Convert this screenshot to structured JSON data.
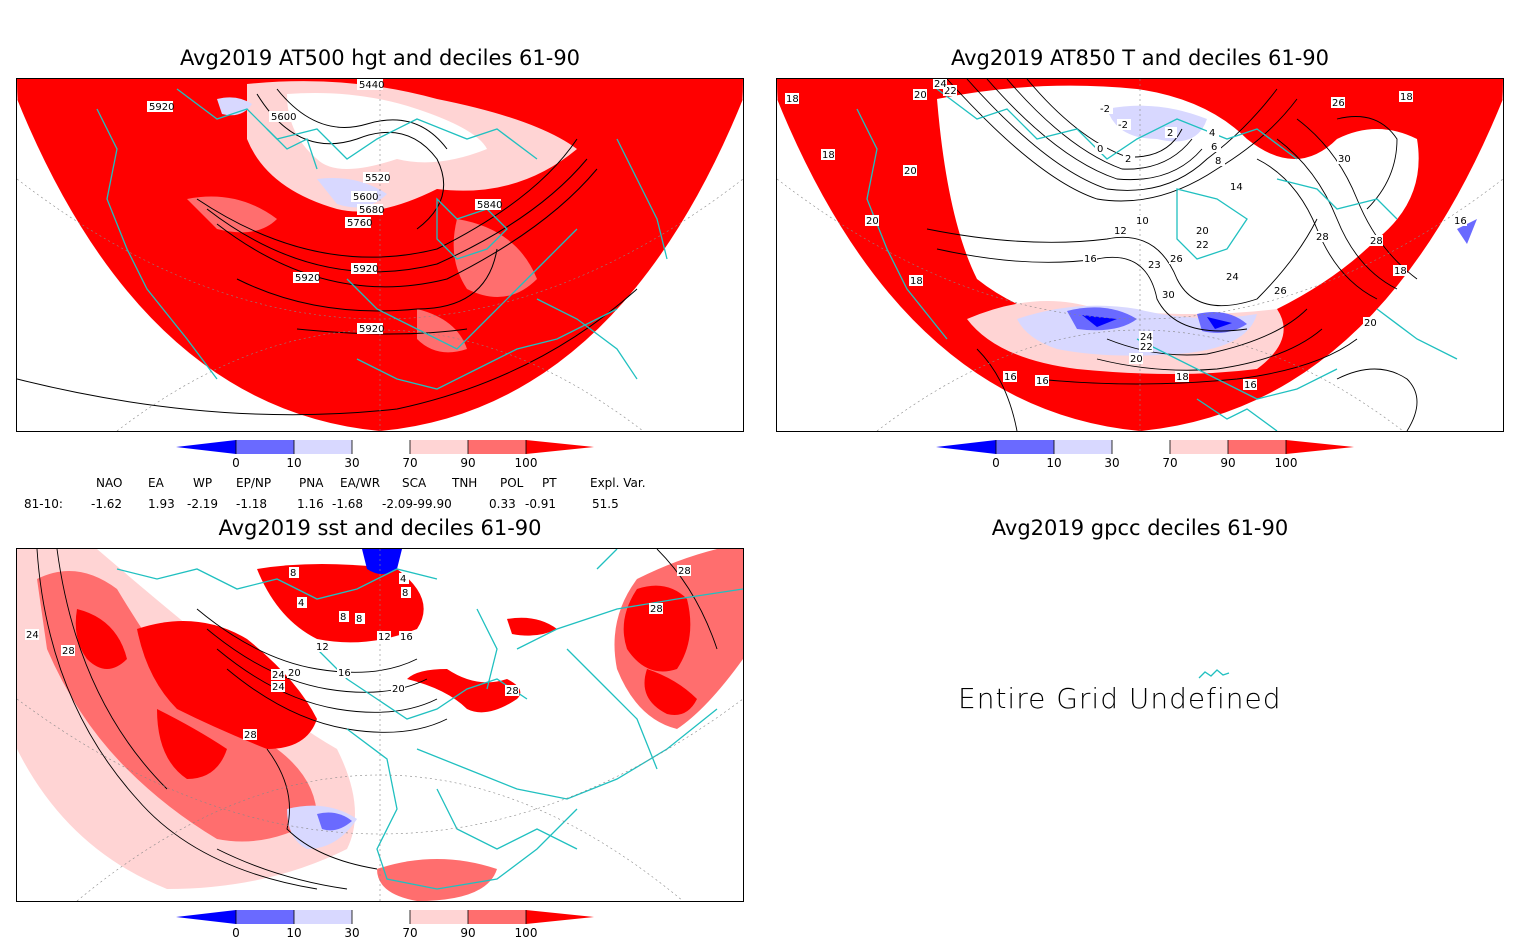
{
  "panels": [
    {
      "title": "Avg2019 AT500 hgt and deciles 61-90",
      "contour_labels": [
        "5440",
        "5920",
        "5600",
        "5520",
        "5600",
        "5680",
        "5760",
        "5840",
        "5920",
        "5920",
        "5920"
      ]
    },
    {
      "title": "Avg2019 AT850 T and deciles 61-90",
      "contour_labels": [
        "18",
        "20",
        "22",
        "24",
        "-2",
        "2",
        "0",
        "-2",
        "4",
        "6",
        "8",
        "2",
        "20",
        "28",
        "26",
        "30",
        "18",
        "18",
        "20",
        "10",
        "12",
        "16",
        "14",
        "20",
        "22",
        "26",
        "23",
        "30",
        "24",
        "26",
        "28",
        "16",
        "18",
        "16",
        "16",
        "24",
        "22",
        "20",
        "18",
        "16",
        "20",
        "18"
      ]
    },
    {
      "title": "Avg2019 sst and deciles 61-90",
      "contour_labels": [
        "28",
        "24",
        "28",
        "4",
        "8",
        "8",
        "12",
        "16",
        "20",
        "24",
        "28",
        "28",
        "12",
        "8",
        "4",
        "8",
        "16",
        "20",
        "28",
        "24"
      ]
    },
    {
      "title": "Avg2019 gpcc deciles 61-90",
      "message": "Entire Grid Undefined"
    }
  ],
  "legend": {
    "ticks": [
      "0",
      "10",
      "30",
      "70",
      "90",
      "100"
    ],
    "colors": [
      "#0000ff",
      "#6a6aff",
      "#d8d8ff",
      "#ffffff",
      "#ffd4d4",
      "#ff6e6e",
      "#ff0000"
    ]
  },
  "indices": {
    "headers": [
      "NAO",
      "EA",
      "WP",
      "EP/NP",
      "PNA",
      "EA/WR",
      "SCA",
      "TNH",
      "POL",
      "PT",
      "Expl. Var."
    ],
    "row_label": "81-10:",
    "values": [
      "-1.62",
      "1.93",
      "-2.19",
      "-1.18",
      "1.16",
      "-1.68",
      "-2.09-99.90",
      "0.33",
      "-0.91",
      "51.5"
    ]
  },
  "colors": {
    "land": "#20c0c0",
    "contour": "#000000",
    "strong_red": "#ff0000",
    "light_red": "#ff6e6e",
    "pale_red": "#ffd4d4",
    "blue": "#0000ff",
    "mid_blue": "#6a6aff",
    "pale_blue": "#d8d8ff"
  }
}
